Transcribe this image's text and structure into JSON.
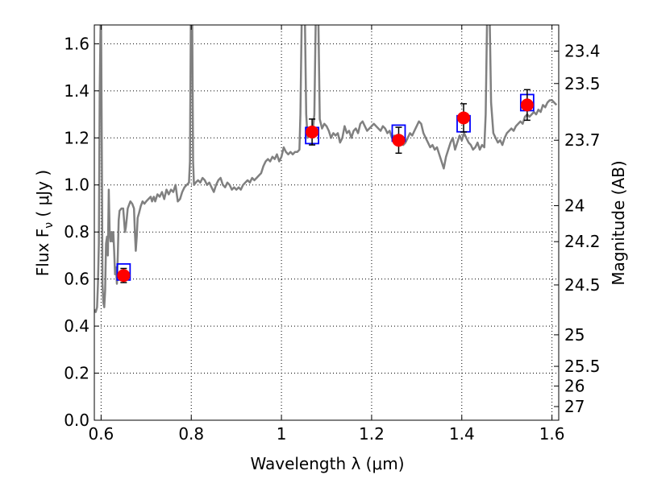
{
  "chart_data": {
    "type": "line",
    "xlabel": "Wavelength  λ (μm)",
    "ylabel": "Flux  F",
    "ylabel_sub": "ν",
    "ylabel_unit": " ( μJy )",
    "y2label": "Magnitude (AB)",
    "xlim": [
      0.585,
      1.615
    ],
    "ylim": [
      0.0,
      1.68
    ],
    "grid": true,
    "grid_style": "dotted",
    "x_ticks": [
      {
        "value": 0.6,
        "label": "0.6"
      },
      {
        "value": 0.8,
        "label": "0.8"
      },
      {
        "value": 1.0,
        "label": "1"
      },
      {
        "value": 1.2,
        "label": "1.2"
      },
      {
        "value": 1.4,
        "label": "1.4"
      },
      {
        "value": 1.6,
        "label": "1.6"
      }
    ],
    "y_ticks": [
      {
        "value": 0.0,
        "label": "0.0"
      },
      {
        "value": 0.2,
        "label": "0.2"
      },
      {
        "value": 0.4,
        "label": "0.4"
      },
      {
        "value": 0.6,
        "label": "0.6"
      },
      {
        "value": 0.8,
        "label": "0.8"
      },
      {
        "value": 1.0,
        "label": "1.0"
      },
      {
        "value": 1.2,
        "label": "1.2"
      },
      {
        "value": 1.4,
        "label": "1.4"
      },
      {
        "value": 1.6,
        "label": "1.6"
      }
    ],
    "y2_ticks": [
      {
        "label": "23.4",
        "flux": 1.569
      },
      {
        "label": "23.5",
        "flux": 1.431
      },
      {
        "label": "23.7",
        "flux": 1.19
      },
      {
        "label": "24",
        "flux": 0.912
      },
      {
        "label": "24.2",
        "flux": 0.759
      },
      {
        "label": "24.5",
        "flux": 0.575
      },
      {
        "label": "25",
        "flux": 0.363
      },
      {
        "label": "25.5",
        "flux": 0.229
      },
      {
        "label": "26",
        "flux": 0.145
      },
      {
        "label": "27",
        "flux": 0.058
      }
    ],
    "series": [
      {
        "style": "line",
        "color": "#808080",
        "points": [
          [
            0.585,
            0.47
          ],
          [
            0.588,
            0.46
          ],
          [
            0.591,
            0.48
          ],
          [
            0.593,
            0.58
          ],
          [
            0.595,
            0.75
          ],
          [
            0.597,
            1.4
          ],
          [
            0.599,
            1.7
          ],
          [
            0.6,
            1.7
          ],
          [
            0.602,
            1.0
          ],
          [
            0.603,
            0.58
          ],
          [
            0.605,
            0.5
          ],
          [
            0.607,
            0.48
          ],
          [
            0.609,
            0.55
          ],
          [
            0.611,
            0.75
          ],
          [
            0.613,
            0.78
          ],
          [
            0.615,
            0.7
          ],
          [
            0.617,
            0.98
          ],
          [
            0.619,
            0.8
          ],
          [
            0.621,
            0.76
          ],
          [
            0.623,
            0.8
          ],
          [
            0.625,
            0.76
          ],
          [
            0.627,
            0.8
          ],
          [
            0.629,
            0.72
          ],
          [
            0.631,
            0.62
          ],
          [
            0.633,
            0.65
          ],
          [
            0.635,
            0.58
          ],
          [
            0.637,
            0.7
          ],
          [
            0.639,
            0.85
          ],
          [
            0.641,
            0.89
          ],
          [
            0.645,
            0.9
          ],
          [
            0.649,
            0.9
          ],
          [
            0.651,
            0.85
          ],
          [
            0.653,
            0.8
          ],
          [
            0.655,
            0.82
          ],
          [
            0.657,
            0.86
          ],
          [
            0.659,
            0.9
          ],
          [
            0.661,
            0.91
          ],
          [
            0.665,
            0.93
          ],
          [
            0.669,
            0.92
          ],
          [
            0.673,
            0.9
          ],
          [
            0.675,
            0.8
          ],
          [
            0.677,
            0.72
          ],
          [
            0.679,
            0.78
          ],
          [
            0.681,
            0.86
          ],
          [
            0.684,
            0.88
          ],
          [
            0.688,
            0.91
          ],
          [
            0.692,
            0.93
          ],
          [
            0.696,
            0.92
          ],
          [
            0.7,
            0.93
          ],
          [
            0.705,
            0.94
          ],
          [
            0.71,
            0.95
          ],
          [
            0.713,
            0.93
          ],
          [
            0.717,
            0.95
          ],
          [
            0.72,
            0.93
          ],
          [
            0.725,
            0.96
          ],
          [
            0.73,
            0.95
          ],
          [
            0.735,
            0.97
          ],
          [
            0.74,
            0.94
          ],
          [
            0.745,
            0.98
          ],
          [
            0.75,
            0.96
          ],
          [
            0.755,
            0.98
          ],
          [
            0.76,
            0.97
          ],
          [
            0.765,
            1.0
          ],
          [
            0.77,
            0.93
          ],
          [
            0.775,
            0.94
          ],
          [
            0.78,
            0.97
          ],
          [
            0.785,
            0.99
          ],
          [
            0.79,
            1.0
          ],
          [
            0.795,
            1.01
          ],
          [
            0.797,
            1.1
          ],
          [
            0.799,
            1.7
          ],
          [
            0.802,
            1.7
          ],
          [
            0.804,
            1.1
          ],
          [
            0.806,
            1.0
          ],
          [
            0.81,
            1.01
          ],
          [
            0.815,
            1.02
          ],
          [
            0.82,
            1.01
          ],
          [
            0.825,
            1.03
          ],
          [
            0.83,
            1.02
          ],
          [
            0.835,
            1.0
          ],
          [
            0.84,
            1.01
          ],
          [
            0.845,
            0.99
          ],
          [
            0.85,
            0.97
          ],
          [
            0.855,
            1.0
          ],
          [
            0.86,
            1.02
          ],
          [
            0.865,
            1.03
          ],
          [
            0.87,
            1.0
          ],
          [
            0.875,
            0.99
          ],
          [
            0.88,
            1.01
          ],
          [
            0.885,
            1.0
          ],
          [
            0.89,
            0.98
          ],
          [
            0.895,
            0.99
          ],
          [
            0.9,
            0.98
          ],
          [
            0.905,
            0.99
          ],
          [
            0.91,
            0.98
          ],
          [
            0.915,
            1.0
          ],
          [
            0.92,
            1.01
          ],
          [
            0.925,
            1.02
          ],
          [
            0.93,
            1.01
          ],
          [
            0.935,
            1.03
          ],
          [
            0.94,
            1.02
          ],
          [
            0.945,
            1.03
          ],
          [
            0.95,
            1.04
          ],
          [
            0.955,
            1.05
          ],
          [
            0.96,
            1.08
          ],
          [
            0.965,
            1.1
          ],
          [
            0.97,
            1.11
          ],
          [
            0.975,
            1.1
          ],
          [
            0.98,
            1.12
          ],
          [
            0.985,
            1.11
          ],
          [
            0.99,
            1.13
          ],
          [
            0.995,
            1.1
          ],
          [
            1.0,
            1.12
          ],
          [
            1.005,
            1.16
          ],
          [
            1.01,
            1.14
          ],
          [
            1.015,
            1.13
          ],
          [
            1.02,
            1.14
          ],
          [
            1.025,
            1.13
          ],
          [
            1.03,
            1.14
          ],
          [
            1.035,
            1.14
          ],
          [
            1.04,
            1.15
          ],
          [
            1.042,
            1.3
          ],
          [
            1.045,
            1.7
          ],
          [
            1.052,
            1.7
          ],
          [
            1.055,
            1.3
          ],
          [
            1.058,
            1.2
          ],
          [
            1.062,
            1.22
          ],
          [
            1.066,
            1.23
          ],
          [
            1.07,
            1.24
          ],
          [
            1.073,
            1.3
          ],
          [
            1.076,
            1.7
          ],
          [
            1.082,
            1.7
          ],
          [
            1.085,
            1.28
          ],
          [
            1.09,
            1.24
          ],
          [
            1.095,
            1.26
          ],
          [
            1.1,
            1.25
          ],
          [
            1.105,
            1.23
          ],
          [
            1.11,
            1.2
          ],
          [
            1.115,
            1.22
          ],
          [
            1.12,
            1.21
          ],
          [
            1.125,
            1.22
          ],
          [
            1.13,
            1.18
          ],
          [
            1.135,
            1.2
          ],
          [
            1.14,
            1.25
          ],
          [
            1.145,
            1.22
          ],
          [
            1.15,
            1.23
          ],
          [
            1.155,
            1.2
          ],
          [
            1.16,
            1.23
          ],
          [
            1.165,
            1.24
          ],
          [
            1.17,
            1.22
          ],
          [
            1.175,
            1.26
          ],
          [
            1.18,
            1.27
          ],
          [
            1.185,
            1.25
          ],
          [
            1.19,
            1.23
          ],
          [
            1.195,
            1.24
          ],
          [
            1.2,
            1.25
          ],
          [
            1.205,
            1.26
          ],
          [
            1.21,
            1.25
          ],
          [
            1.215,
            1.24
          ],
          [
            1.22,
            1.23
          ],
          [
            1.225,
            1.25
          ],
          [
            1.23,
            1.24
          ],
          [
            1.235,
            1.22
          ],
          [
            1.24,
            1.23
          ],
          [
            1.245,
            1.2
          ],
          [
            1.25,
            1.21
          ],
          [
            1.255,
            1.2
          ],
          [
            1.26,
            1.21
          ],
          [
            1.265,
            1.19
          ],
          [
            1.27,
            1.17
          ],
          [
            1.275,
            1.18
          ],
          [
            1.28,
            1.2
          ],
          [
            1.285,
            1.22
          ],
          [
            1.29,
            1.21
          ],
          [
            1.295,
            1.23
          ],
          [
            1.3,
            1.25
          ],
          [
            1.305,
            1.27
          ],
          [
            1.31,
            1.26
          ],
          [
            1.315,
            1.22
          ],
          [
            1.32,
            1.2
          ],
          [
            1.325,
            1.18
          ],
          [
            1.33,
            1.16
          ],
          [
            1.335,
            1.17
          ],
          [
            1.34,
            1.15
          ],
          [
            1.345,
            1.16
          ],
          [
            1.35,
            1.13
          ],
          [
            1.355,
            1.1
          ],
          [
            1.36,
            1.07
          ],
          [
            1.365,
            1.12
          ],
          [
            1.37,
            1.15
          ],
          [
            1.375,
            1.18
          ],
          [
            1.38,
            1.2
          ],
          [
            1.385,
            1.15
          ],
          [
            1.39,
            1.18
          ],
          [
            1.395,
            1.21
          ],
          [
            1.4,
            1.19
          ],
          [
            1.405,
            1.22
          ],
          [
            1.41,
            1.2
          ],
          [
            1.415,
            1.18
          ],
          [
            1.42,
            1.17
          ],
          [
            1.425,
            1.15
          ],
          [
            1.43,
            1.16
          ],
          [
            1.435,
            1.18
          ],
          [
            1.44,
            1.15
          ],
          [
            1.445,
            1.17
          ],
          [
            1.45,
            1.16
          ],
          [
            1.453,
            1.3
          ],
          [
            1.456,
            1.7
          ],
          [
            1.462,
            1.7
          ],
          [
            1.465,
            1.35
          ],
          [
            1.47,
            1.22
          ],
          [
            1.475,
            1.2
          ],
          [
            1.48,
            1.18
          ],
          [
            1.485,
            1.19
          ],
          [
            1.49,
            1.17
          ],
          [
            1.495,
            1.2
          ],
          [
            1.5,
            1.22
          ],
          [
            1.505,
            1.23
          ],
          [
            1.51,
            1.24
          ],
          [
            1.515,
            1.23
          ],
          [
            1.52,
            1.25
          ],
          [
            1.525,
            1.26
          ],
          [
            1.53,
            1.27
          ],
          [
            1.535,
            1.26
          ],
          [
            1.54,
            1.29
          ],
          [
            1.545,
            1.3
          ],
          [
            1.55,
            1.29
          ],
          [
            1.555,
            1.3
          ],
          [
            1.56,
            1.31
          ],
          [
            1.565,
            1.3
          ],
          [
            1.57,
            1.32
          ],
          [
            1.575,
            1.31
          ],
          [
            1.58,
            1.34
          ],
          [
            1.585,
            1.33
          ],
          [
            1.59,
            1.35
          ],
          [
            1.595,
            1.36
          ],
          [
            1.6,
            1.36
          ],
          [
            1.605,
            1.35
          ],
          [
            1.61,
            1.34
          ]
        ]
      },
      {
        "style": "squares",
        "color": "#0000ff",
        "points": [
          [
            0.65,
            0.63
          ],
          [
            1.068,
            1.21
          ],
          [
            1.26,
            1.22
          ],
          [
            1.404,
            1.26
          ],
          [
            1.545,
            1.35
          ]
        ]
      },
      {
        "style": "points-errorbars",
        "color": "#ff0000",
        "points": [
          {
            "x": 0.65,
            "y": 0.615,
            "err": 0.03
          },
          {
            "x": 1.068,
            "y": 1.225,
            "err": 0.055
          },
          {
            "x": 1.26,
            "y": 1.19,
            "err": 0.055
          },
          {
            "x": 1.404,
            "y": 1.285,
            "err": 0.06
          },
          {
            "x": 1.545,
            "y": 1.34,
            "err": 0.065
          }
        ]
      }
    ]
  }
}
